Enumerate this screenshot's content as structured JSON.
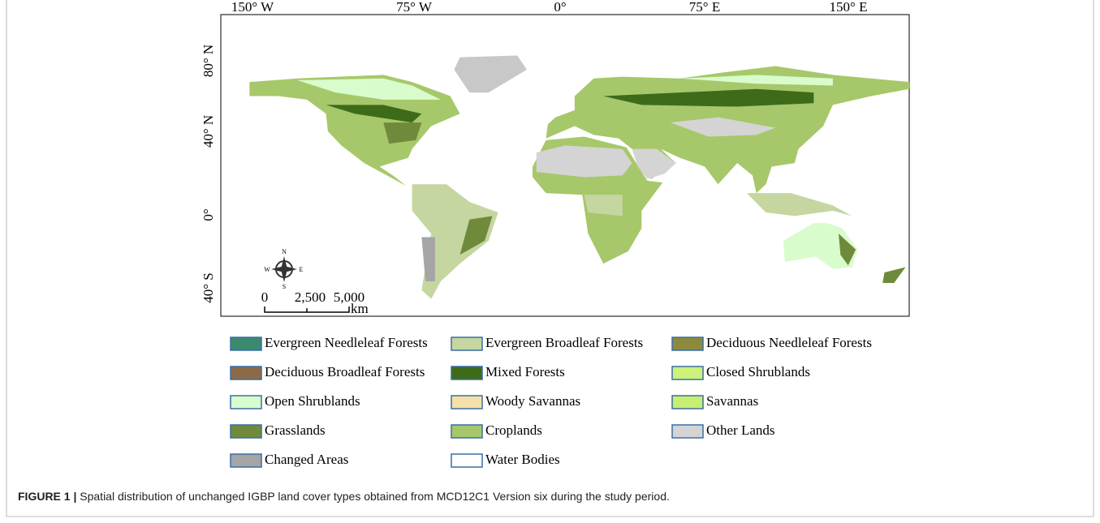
{
  "map": {
    "longitude_labels": [
      "150° W",
      "75° W",
      "0°",
      "75° E",
      "150° E"
    ],
    "latitude_labels": [
      "80° N",
      "40° N",
      "0°",
      "40° S"
    ],
    "compass": {
      "north": "N",
      "east": "E",
      "south": "S",
      "west": "W"
    },
    "scale_bar": {
      "labels": [
        "0",
        "2,500",
        "5,000"
      ],
      "unit": "km"
    }
  },
  "legend": [
    {
      "label": "Evergreen Needleleaf Forests",
      "color": "#3a8a6e"
    },
    {
      "label": "Evergreen Broadleaf Forests",
      "color": "#c5d6a0"
    },
    {
      "label": "Deciduous Needleleaf Forests",
      "color": "#8c8a3c"
    },
    {
      "label": "Deciduous Broadleaf Forests",
      "color": "#8c6a48"
    },
    {
      "label": "Mixed Forests",
      "color": "#3d6b1a"
    },
    {
      "label": "Closed Shrublands",
      "color": "#ccf27a"
    },
    {
      "label": "Open Shrublands",
      "color": "#d8fccc"
    },
    {
      "label": "Woody Savannas",
      "color": "#f6e0a8"
    },
    {
      "label": "Savannas",
      "color": "#c8ee72"
    },
    {
      "label": "Grasslands",
      "color": "#6f8a3a"
    },
    {
      "label": "Croplands",
      "color": "#a6c86a"
    },
    {
      "label": "Other Lands",
      "color": "#d4d4d4"
    },
    {
      "label": "Changed Areas",
      "color": "#a5a5a5"
    },
    {
      "label": "Water Bodies",
      "color": "#ffffff"
    }
  ],
  "caption": {
    "label": "FIGURE 1 |",
    "text": "Spatial distribution of unchanged IGBP land cover types obtained from MCD12C1 Version six during the study period."
  }
}
